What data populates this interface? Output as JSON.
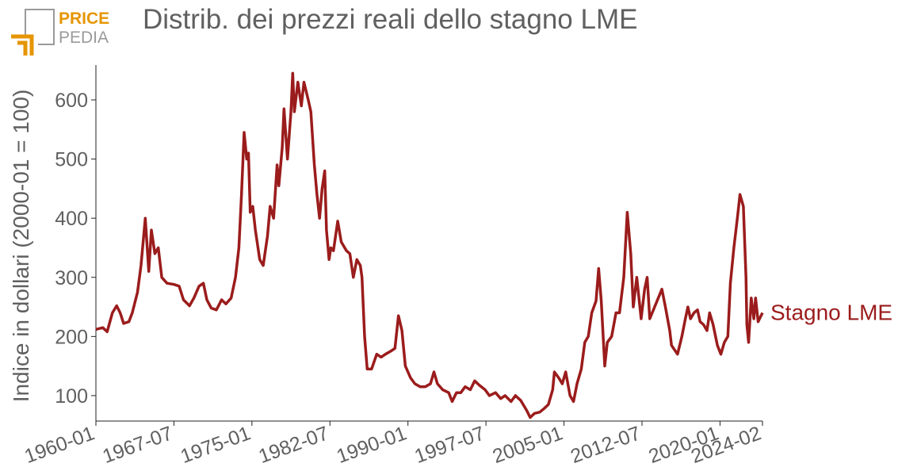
{
  "logo": {
    "top": "PRICE",
    "bottom": "PEDIA"
  },
  "chart_data": {
    "type": "line",
    "title": "Distrib. dei prezzi reali dello stagno LME",
    "y_label": "Indice in dollari (2000-01 = 100)",
    "xlim": [
      "1960-01",
      "2024-02"
    ],
    "xticks": [
      "1960-01",
      "1967-07",
      "1975-01",
      "1982-07",
      "1990-01",
      "1997-07",
      "2005-01",
      "2012-07",
      "2020-01",
      "2024-02"
    ],
    "ylim": [
      57,
      659
    ],
    "yticks": [
      100,
      200,
      300,
      400,
      500,
      600
    ],
    "grid": false,
    "x": [
      "1960-01",
      "1960-09",
      "1961-02",
      "1961-08",
      "1962-01",
      "1962-05",
      "1962-09",
      "1963-03",
      "1963-07",
      "1964-01",
      "1964-05",
      "1964-10",
      "1965-02",
      "1965-05",
      "1965-09",
      "1966-01",
      "1966-05",
      "1966-11",
      "1967-07",
      "1968-01",
      "1968-06",
      "1969-01",
      "1969-06",
      "1969-12",
      "1970-05",
      "1970-09",
      "1971-02",
      "1971-08",
      "1972-02",
      "1972-07",
      "1973-01",
      "1973-06",
      "1973-10",
      "1974-01",
      "1974-04",
      "1974-07",
      "1974-09",
      "1974-11",
      "1975-02",
      "1975-05",
      "1975-10",
      "1976-02",
      "1976-07",
      "1976-10",
      "1977-02",
      "1977-06",
      "1977-08",
      "1977-12",
      "1978-02",
      "1978-06",
      "1978-10",
      "1978-12",
      "1979-02",
      "1979-06",
      "1979-10",
      "1980-01",
      "1980-06",
      "1980-09",
      "1981-01",
      "1981-04",
      "1981-07",
      "1981-10",
      "1982-01",
      "1982-03",
      "1982-06",
      "1982-08",
      "1982-11",
      "1983-04",
      "1983-08",
      "1984-02",
      "1984-06",
      "1984-10",
      "1985-02",
      "1985-06",
      "1985-08",
      "1985-11",
      "1986-02",
      "1986-07",
      "1987-01",
      "1987-06",
      "1987-11",
      "1988-05",
      "1988-10",
      "1989-02",
      "1989-06",
      "1989-10",
      "1990-04",
      "1990-09",
      "1991-03",
      "1991-09",
      "1992-03",
      "1992-07",
      "1992-11",
      "1993-05",
      "1993-12",
      "1994-04",
      "1994-09",
      "1995-02",
      "1995-07",
      "1996-01",
      "1996-06",
      "1996-11",
      "1997-06",
      "1997-11",
      "1998-06",
      "1998-12",
      "1999-05",
      "1999-12",
      "2000-05",
      "2000-11",
      "2001-06",
      "2001-10",
      "2002-03",
      "2002-09",
      "2003-02",
      "2003-07",
      "2003-12",
      "2004-02",
      "2004-07",
      "2004-11",
      "2005-03",
      "2005-08",
      "2005-12",
      "2006-04",
      "2006-09",
      "2007-01",
      "2007-05",
      "2007-09",
      "2008-02",
      "2008-05",
      "2008-08",
      "2008-12",
      "2009-03",
      "2009-08",
      "2010-01",
      "2010-05",
      "2010-10",
      "2011-02",
      "2011-06",
      "2011-09",
      "2012-01",
      "2012-06",
      "2012-10",
      "2013-01",
      "2013-04",
      "2014-06",
      "2014-10",
      "2015-03",
      "2015-05",
      "2015-12",
      "2016-05",
      "2016-09",
      "2016-12",
      "2017-03",
      "2017-07",
      "2017-11",
      "2018-02",
      "2018-06",
      "2018-10",
      "2019-01",
      "2019-05",
      "2019-10",
      "2020-02",
      "2020-06",
      "2020-10",
      "2021-01",
      "2021-05",
      "2021-09",
      "2021-12",
      "2022-04",
      "2022-07",
      "2022-08",
      "2022-10",
      "2023-01",
      "2023-04",
      "2023-06",
      "2023-09",
      "2024-02"
    ],
    "series": [
      {
        "name": "Stagno LME",
        "color": "#9b1c1c",
        "values": [
          212,
          215,
          208,
          240,
          252,
          240,
          222,
          225,
          240,
          275,
          320,
          400,
          310,
          380,
          340,
          350,
          300,
          290,
          288,
          285,
          262,
          252,
          265,
          285,
          290,
          262,
          248,
          245,
          262,
          255,
          265,
          300,
          350,
          440,
          545,
          500,
          510,
          410,
          420,
          380,
          330,
          320,
          370,
          420,
          400,
          490,
          455,
          520,
          585,
          500,
          580,
          645,
          580,
          630,
          590,
          630,
          600,
          580,
          490,
          440,
          400,
          450,
          480,
          380,
          330,
          350,
          345,
          395,
          360,
          345,
          340,
          300,
          330,
          320,
          300,
          200,
          145,
          145,
          170,
          165,
          170,
          175,
          180,
          235,
          210,
          150,
          130,
          120,
          115,
          115,
          120,
          140,
          120,
          110,
          105,
          90,
          105,
          105,
          115,
          110,
          125,
          118,
          110,
          100,
          105,
          95,
          100,
          90,
          100,
          92,
          75,
          63,
          70,
          72,
          78,
          85,
          110,
          140,
          130,
          120,
          140,
          100,
          90,
          120,
          145,
          190,
          200,
          240,
          260,
          315,
          260,
          150,
          190,
          200,
          240,
          240,
          300,
          410,
          340,
          250,
          300,
          230,
          280,
          300,
          230,
          280,
          250,
          210,
          185,
          170,
          200,
          230,
          250,
          230,
          240,
          245,
          225,
          220,
          210,
          240,
          220,
          185,
          170,
          190,
          200,
          290,
          350,
          400,
          440,
          420,
          300,
          220,
          190,
          265,
          230,
          265,
          225,
          240
        ]
      }
    ]
  }
}
